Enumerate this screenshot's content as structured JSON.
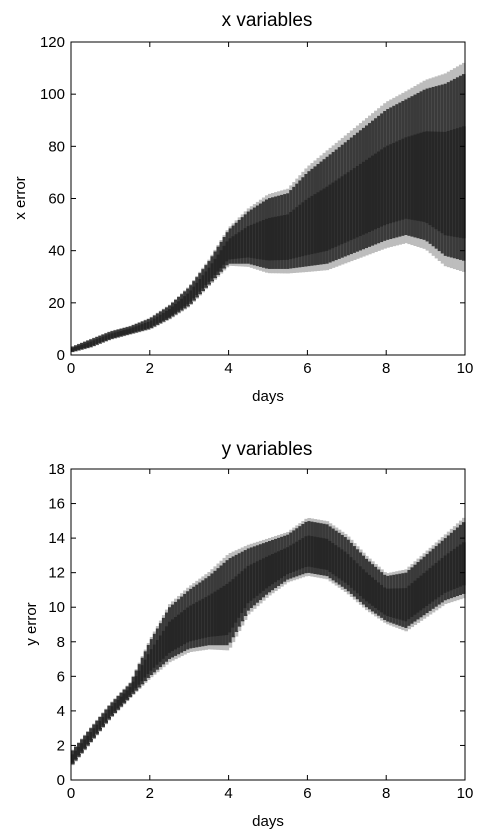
{
  "chart_data": [
    {
      "type": "heatmap",
      "title": "x variables",
      "xlabel": "days",
      "ylabel": "x error",
      "xlim": [
        0,
        10
      ],
      "ylim": [
        0,
        120
      ],
      "xticks": [
        "0",
        "2",
        "4",
        "6",
        "8",
        "10"
      ],
      "yticks": [
        "0",
        "20",
        "40",
        "60",
        "80",
        "100",
        "120"
      ],
      "grid": false,
      "colormap": "gray",
      "band": {
        "x": [
          0,
          0.5,
          1,
          1.5,
          2,
          2.5,
          3,
          3.5,
          4,
          4.5,
          5,
          5.5,
          6,
          6.5,
          7,
          7.5,
          8,
          8.5,
          9,
          9.5,
          10
        ],
        "lower": [
          1,
          3,
          6,
          8,
          10,
          14,
          19,
          27,
          35,
          35,
          33,
          33,
          34,
          35,
          38,
          41,
          44,
          46,
          44,
          38,
          36
        ],
        "upper": [
          3,
          6,
          9,
          11,
          14,
          19,
          26,
          36,
          48,
          55,
          60,
          62,
          70,
          76,
          82,
          88,
          94,
          98,
          102,
          104,
          108
        ]
      }
    },
    {
      "type": "heatmap",
      "title": "y variables",
      "xlabel": "days",
      "ylabel": "y error",
      "xlim": [
        0,
        10
      ],
      "ylim": [
        0,
        18
      ],
      "xticks": [
        "0",
        "2",
        "4",
        "6",
        "8",
        "10"
      ],
      "yticks": [
        "0",
        "2",
        "4",
        "6",
        "8",
        "10",
        "12",
        "14",
        "16",
        "18"
      ],
      "grid": false,
      "colormap": "gray",
      "band": {
        "x": [
          0,
          0.5,
          1,
          1.5,
          2,
          2.5,
          3,
          3.5,
          4,
          4.5,
          5,
          5.5,
          6,
          6.5,
          7,
          7.5,
          8,
          8.5,
          9,
          9.5,
          10
        ],
        "lower": [
          0.8,
          2.2,
          3.6,
          4.8,
          6.0,
          7.0,
          7.6,
          7.8,
          7.8,
          9.8,
          10.8,
          11.6,
          12.0,
          11.8,
          11.0,
          10.0,
          9.2,
          8.8,
          9.6,
          10.4,
          10.8
        ],
        "upper": [
          1.6,
          3.0,
          4.4,
          5.6,
          8.0,
          10.0,
          11.0,
          11.8,
          12.8,
          13.4,
          13.8,
          14.2,
          15.0,
          14.8,
          14.0,
          12.8,
          11.8,
          12.0,
          13.0,
          14.0,
          15.0
        ]
      }
    }
  ]
}
